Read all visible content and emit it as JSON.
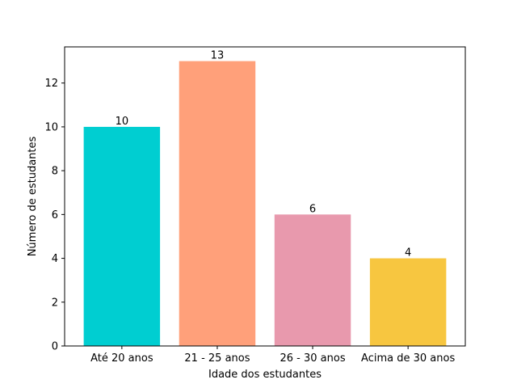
{
  "chart_data": {
    "type": "bar",
    "categories": [
      "Até 20 anos",
      "21 - 25 anos",
      "26 - 30 anos",
      "Acima de 30 anos"
    ],
    "values": [
      10,
      13,
      6,
      4
    ],
    "colors": [
      "#00CED1",
      "#FFA07A",
      "#E899AD",
      "#F7C640"
    ],
    "data_labels": [
      "10",
      "13",
      "6",
      "4"
    ],
    "xlabel": "Idade dos estudantes",
    "ylabel": "Número de estudantes",
    "ylim": [
      0,
      13.65
    ],
    "yticks": [
      0,
      2,
      4,
      6,
      8,
      10,
      12
    ],
    "grid": false,
    "legend": "none"
  }
}
